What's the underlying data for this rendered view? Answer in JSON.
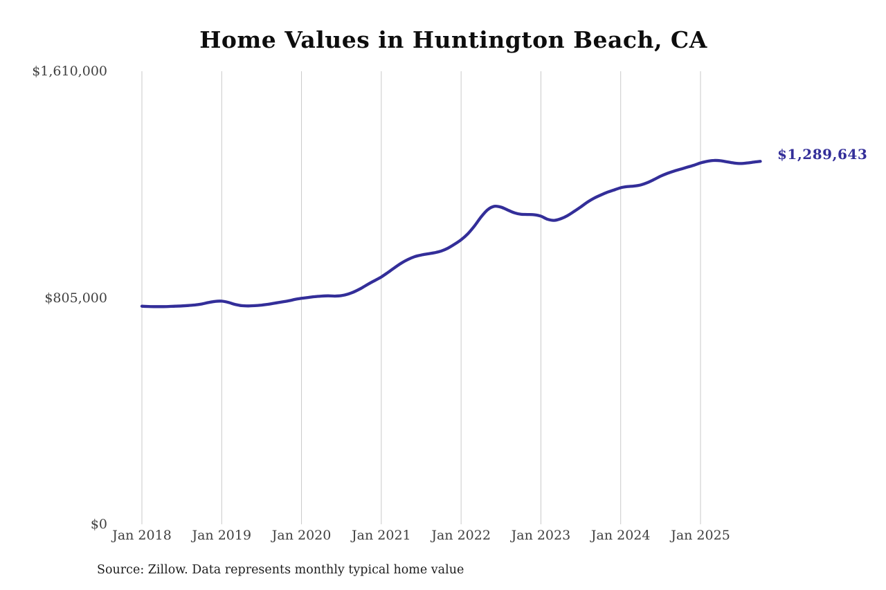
{
  "page": {
    "title": "Home Values in Huntington Beach, CA",
    "source_note": "Source: Zillow. Data represents monthly typical home value"
  },
  "colors": {
    "line": "#332e99",
    "grid": "#c9c9c9",
    "tick_text": "#3f3f3f",
    "title_text": "#0d0d0d",
    "end_label_text": "#332e99"
  },
  "chart_data": {
    "type": "line",
    "title": "Home Values in Huntington Beach, CA",
    "xlabel": "",
    "ylabel": "",
    "x_unit": "month",
    "x_start": "Jan 2018",
    "x_end": "Oct 2025",
    "ylim": [
      0,
      1610000
    ],
    "grid": "vertical-only",
    "legend": "none",
    "end_label": "$1,289,643",
    "final_value": 1289643,
    "y_ticks": [
      {
        "value": 0,
        "label": "$0"
      },
      {
        "value": 805000,
        "label": "$805,000"
      },
      {
        "value": 1610000,
        "label": "$1,610,000"
      }
    ],
    "x_ticks": [
      {
        "month_index": 0,
        "label": "Jan 2018"
      },
      {
        "month_index": 12,
        "label": "Jan 2019"
      },
      {
        "month_index": 24,
        "label": "Jan 2020"
      },
      {
        "month_index": 36,
        "label": "Jan 2021"
      },
      {
        "month_index": 48,
        "label": "Jan 2022"
      },
      {
        "month_index": 60,
        "label": "Jan 2023"
      },
      {
        "month_index": 72,
        "label": "Jan 2024"
      },
      {
        "month_index": 84,
        "label": "Jan 2025"
      }
    ],
    "series": [
      {
        "name": "Monthly typical home value",
        "values": [
          775000,
          774000,
          773500,
          773500,
          774000,
          775000,
          776000,
          777500,
          779500,
          783000,
          788000,
          792000,
          793000,
          788500,
          781500,
          777000,
          776000,
          777000,
          779000,
          782000,
          786000,
          790000,
          794000,
          799000,
          803000,
          806000,
          809000,
          811000,
          812000,
          811000,
          812500,
          818000,
          827000,
          839000,
          853000,
          866000,
          879000,
          895000,
          912000,
          928000,
          941000,
          951000,
          957000,
          961000,
          965000,
          971000,
          981000,
          995000,
          1011000,
          1032000,
          1060000,
          1092000,
          1118000,
          1130000,
          1127000,
          1117000,
          1107000,
          1102000,
          1101000,
          1100000,
          1095000,
          1084000,
          1080000,
          1086000,
          1097000,
          1112000,
          1128000,
          1145000,
          1159000,
          1170000,
          1180000,
          1188000,
          1196000,
          1200000,
          1202000,
          1206000,
          1214000,
          1225000,
          1237000,
          1247000,
          1255000,
          1262000,
          1269000,
          1276000,
          1284000,
          1290000,
          1293000,
          1292000,
          1288000,
          1284000,
          1282000,
          1284000,
          1287000,
          1289643
        ]
      }
    ]
  }
}
